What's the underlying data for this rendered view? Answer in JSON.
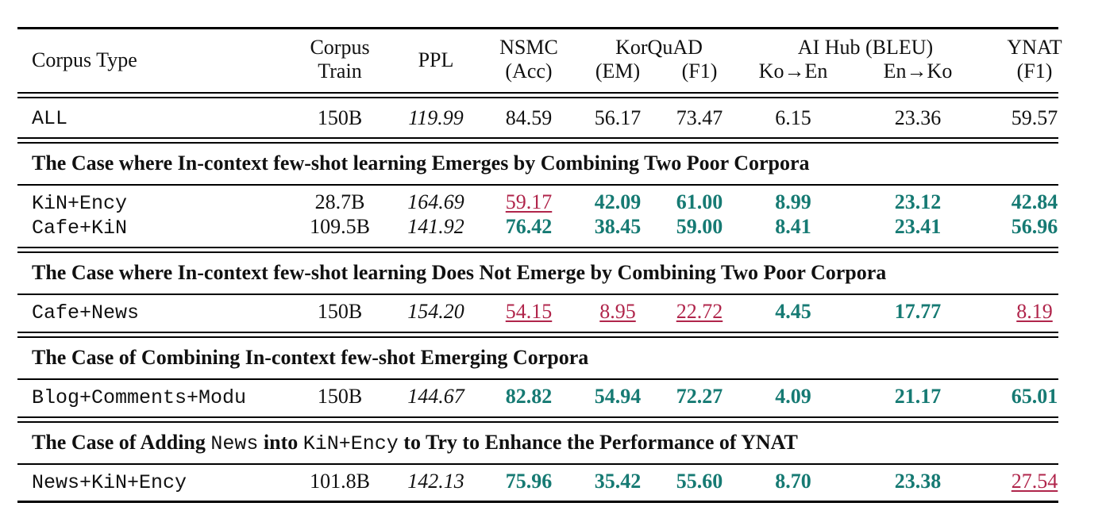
{
  "header": {
    "corpus_type": "Corpus Type",
    "corpus_train_1": "Corpus",
    "corpus_train_2": "Train",
    "ppl": "PPL",
    "nsmc_1": "NSMC",
    "nsmc_2": "(Acc)",
    "korquad": "KorQuAD",
    "korquad_em": "(EM)",
    "korquad_f1": "(F1)",
    "aihub": "AI Hub (BLEU)",
    "aihub_koen": "Ko→En",
    "aihub_enko": "En→Ko",
    "ynat_1": "YNAT",
    "ynat_2": "(F1)"
  },
  "rows": {
    "all": {
      "name": "ALL",
      "train": "150B",
      "ppl": "119.99",
      "nsmc": "84.59",
      "em": "56.17",
      "f1": "73.47",
      "koen": "6.15",
      "enko": "23.36",
      "ynat": "59.57"
    },
    "kin_ency": {
      "name": "KiN+Ency",
      "train": "28.7B",
      "ppl": "164.69",
      "nsmc": "59.17",
      "em": "42.09",
      "f1": "61.00",
      "koen": "8.99",
      "enko": "23.12",
      "ynat": "42.84"
    },
    "cafe_kin": {
      "name": "Cafe+KiN",
      "train": "109.5B",
      "ppl": "141.92",
      "nsmc": "76.42",
      "em": "38.45",
      "f1": "59.00",
      "koen": "8.41",
      "enko": "23.41",
      "ynat": "56.96"
    },
    "cafe_news": {
      "name": "Cafe+News",
      "train": "150B",
      "ppl": "154.20",
      "nsmc": "54.15",
      "em": "8.95",
      "f1": "22.72",
      "koen": "4.45",
      "enko": "17.77",
      "ynat": "8.19"
    },
    "blog": {
      "name": "Blog+Comments+Modu",
      "train": "150B",
      "ppl": "144.67",
      "nsmc": "82.82",
      "em": "54.94",
      "f1": "72.27",
      "koen": "4.09",
      "enko": "21.17",
      "ynat": "65.01"
    },
    "news_kin": {
      "name": "News+KiN+Ency",
      "train": "101.8B",
      "ppl": "142.13",
      "nsmc": "75.96",
      "em": "35.42",
      "f1": "55.60",
      "koen": "8.70",
      "enko": "23.38",
      "ynat": "27.54"
    }
  },
  "sections": {
    "s1": "The Case where In-context few-shot learning Emerges by Combining Two Poor Corpora",
    "s2": "The Case where In-context few-shot learning Does Not Emerge by Combining Two Poor Corpora",
    "s3": "The Case of Combining In-context few-shot Emerging Corpora",
    "s4_a": "The Case of Adding ",
    "s4_news": "News",
    "s4_b": " into ",
    "s4_kin": "KiN+Ency",
    "s4_c": " to Try to Enhance the Performance of YNAT"
  },
  "colors": {
    "good": "#167a73",
    "bad": "#b0254b"
  }
}
